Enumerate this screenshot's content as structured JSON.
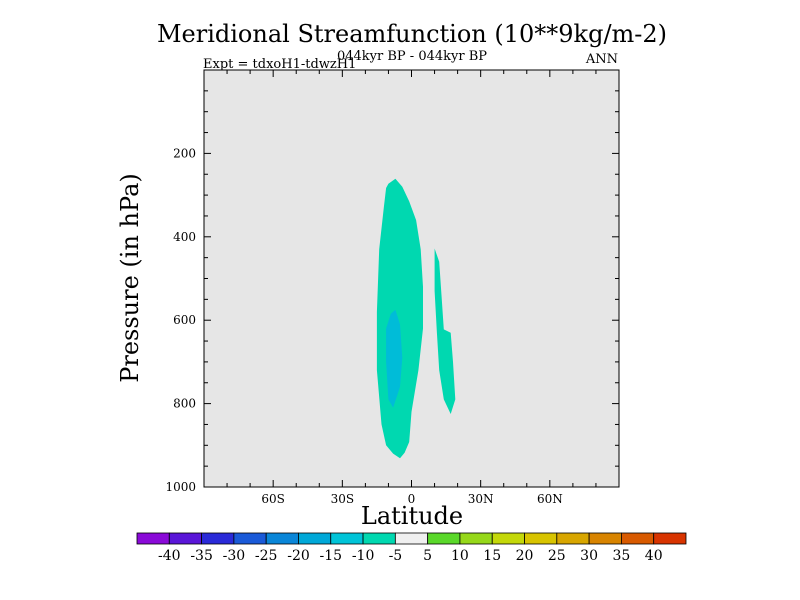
{
  "chart_data": {
    "type": "contour",
    "title": "Meridional Streamfunction (10**9kg/m-2)",
    "subtitle_left": "Expt = tdxoH1-tdwzH1",
    "subtitle_center": "044kyr BP - 044kyr BP",
    "subtitle_right": "ANN",
    "xlabel": "Latitude",
    "ylabel": "Pressure (in hPa)",
    "xlim": [
      -90,
      90
    ],
    "ylim": [
      1000,
      0
    ],
    "x_ticks": [
      {
        "value": -60,
        "label": "60S"
      },
      {
        "value": -30,
        "label": "30S"
      },
      {
        "value": 0,
        "label": "0"
      },
      {
        "value": 30,
        "label": "30N"
      },
      {
        "value": 60,
        "label": "60N"
      }
    ],
    "y_ticks": [
      {
        "value": 200,
        "label": "200"
      },
      {
        "value": 400,
        "label": "400"
      },
      {
        "value": 600,
        "label": "600"
      },
      {
        "value": 800,
        "label": "800"
      },
      {
        "value": 1000,
        "label": "1000"
      }
    ],
    "background_color": "#e6e6e6",
    "regions": [
      {
        "name": "region-west-minus10",
        "level": "-10 to -5",
        "color": "#00d8b0",
        "outline": [
          [
            -10,
            273
          ],
          [
            -7,
            261
          ],
          [
            -4,
            280
          ],
          [
            -1,
            315
          ],
          [
            2,
            360
          ],
          [
            4,
            430
          ],
          [
            5,
            520
          ],
          [
            5,
            620
          ],
          [
            3,
            720
          ],
          [
            0,
            820
          ],
          [
            -1,
            892
          ],
          [
            -3,
            918
          ],
          [
            -5,
            931
          ],
          [
            -8,
            920
          ],
          [
            -11,
            900
          ],
          [
            -13,
            850
          ],
          [
            -15,
            720
          ],
          [
            -15,
            580
          ],
          [
            -14,
            430
          ],
          [
            -12,
            330
          ],
          [
            -11,
            283
          ]
        ]
      },
      {
        "name": "region-west-minus15",
        "level": "-15 to -10",
        "color": "#00bcd8",
        "outline": [
          [
            -7,
            575
          ],
          [
            -5,
            610
          ],
          [
            -4,
            690
          ],
          [
            -5,
            760
          ],
          [
            -8,
            810
          ],
          [
            -10,
            790
          ],
          [
            -11,
            700
          ],
          [
            -11,
            620
          ],
          [
            -9,
            585
          ]
        ]
      },
      {
        "name": "region-east-minus10",
        "level": "-10 to -5",
        "color": "#00d8b0",
        "outline": [
          [
            10,
            428
          ],
          [
            12,
            460
          ],
          [
            13,
            540
          ],
          [
            14,
            622
          ],
          [
            17,
            630
          ],
          [
            18,
            700
          ],
          [
            19,
            790
          ],
          [
            17,
            825
          ],
          [
            14,
            790
          ],
          [
            12,
            720
          ],
          [
            11,
            630
          ],
          [
            10,
            530
          ],
          [
            10,
            460
          ]
        ]
      }
    ],
    "colorbar": {
      "colors": [
        "#8a0ad8",
        "#5a16d8",
        "#2a2ad8",
        "#1a5ad8",
        "#0a86d8",
        "#00a8d8",
        "#00c4d8",
        "#00d8b0",
        "#f0f0f0",
        "#5ad82a",
        "#96d81a",
        "#c4d80a",
        "#d8c400",
        "#d8a600",
        "#d88400",
        "#d85a00",
        "#d83400"
      ],
      "labels": [
        "-40",
        "-35",
        "-30",
        "-25",
        "-20",
        "-15",
        "-10",
        "-5",
        "5",
        "10",
        "15",
        "20",
        "25",
        "30",
        "35",
        "40"
      ]
    }
  }
}
